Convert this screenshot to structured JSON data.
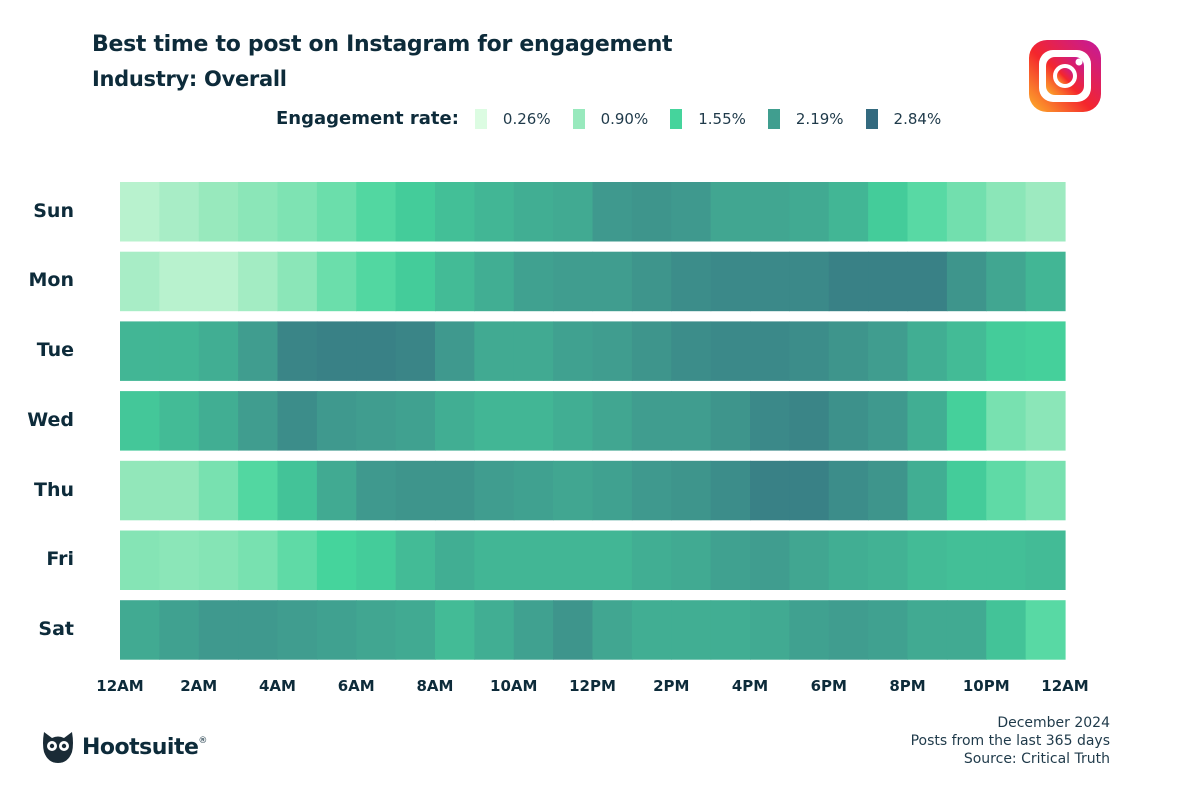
{
  "header": {
    "title": "Best time to post on Instagram for engagement",
    "subtitle": "Industry: Overall"
  },
  "legend": {
    "title": "Engagement rate:",
    "items": [
      {
        "label": "0.26%",
        "color": "#dcfce2"
      },
      {
        "label": "0.90%",
        "color": "#98e9bd"
      },
      {
        "label": "1.55%",
        "color": "#45d49c"
      },
      {
        "label": "2.19%",
        "color": "#409e8f"
      },
      {
        "label": "2.84%",
        "color": "#336a7f"
      }
    ]
  },
  "footer": {
    "date": "December 2024",
    "range": "Posts from the last 365 days",
    "source": "Source: Critical Truth"
  },
  "brand": {
    "name": "Hootsuite",
    "mark": "®",
    "icon": "owl-logo-icon"
  },
  "platform_icon": "instagram-icon",
  "chart_data": {
    "type": "heatmap",
    "title": "Best time to post on Instagram for engagement",
    "subtitle": "Industry: Overall",
    "color_scale": {
      "min": 0.26,
      "max": 2.84,
      "unit": "%",
      "stops": [
        0.26,
        0.9,
        1.55,
        2.19,
        2.84
      ]
    },
    "rows": [
      "Sun",
      "Mon",
      "Tue",
      "Wed",
      "Thu",
      "Fri",
      "Sat"
    ],
    "x_tick_labels": [
      "12AM",
      "2AM",
      "4AM",
      "6AM",
      "8AM",
      "10AM",
      "12PM",
      "2PM",
      "4PM",
      "6PM",
      "8PM",
      "10PM",
      "12AM"
    ],
    "columns": "hourly, 24 per day",
    "values": [
      [
        0.6,
        0.75,
        0.9,
        1.0,
        1.1,
        1.25,
        1.45,
        1.65,
        1.8,
        1.9,
        2.0,
        2.05,
        2.25,
        2.3,
        2.25,
        2.1,
        2.1,
        2.05,
        1.9,
        1.65,
        1.4,
        1.2,
        1.0,
        0.85
      ],
      [
        0.75,
        0.6,
        0.6,
        0.8,
        1.0,
        1.25,
        1.45,
        1.65,
        1.85,
        2.0,
        2.15,
        2.2,
        2.2,
        2.3,
        2.4,
        2.45,
        2.45,
        2.45,
        2.55,
        2.55,
        2.55,
        2.3,
        2.1,
        1.9
      ],
      [
        1.9,
        1.9,
        2.0,
        2.2,
        2.5,
        2.55,
        2.55,
        2.5,
        2.25,
        2.05,
        2.05,
        2.15,
        2.2,
        2.3,
        2.4,
        2.45,
        2.45,
        2.4,
        2.3,
        2.2,
        2.0,
        1.85,
        1.65,
        1.6
      ],
      [
        1.7,
        1.85,
        2.0,
        2.2,
        2.4,
        2.25,
        2.2,
        2.15,
        2.0,
        1.9,
        1.9,
        2.0,
        2.1,
        2.2,
        2.2,
        2.3,
        2.45,
        2.5,
        2.35,
        2.25,
        2.0,
        1.6,
        1.15,
        1.0
      ],
      [
        0.95,
        0.95,
        1.15,
        1.45,
        1.75,
        2.05,
        2.25,
        2.3,
        2.3,
        2.2,
        2.15,
        2.1,
        2.15,
        2.25,
        2.3,
        2.4,
        2.55,
        2.55,
        2.4,
        2.3,
        2.0,
        1.65,
        1.35,
        1.15
      ],
      [
        1.05,
        1.0,
        1.05,
        1.15,
        1.35,
        1.55,
        1.65,
        1.85,
        2.0,
        1.9,
        1.9,
        1.9,
        1.9,
        2.0,
        2.05,
        2.15,
        2.2,
        2.1,
        2.0,
        1.95,
        1.85,
        1.8,
        1.8,
        1.85
      ],
      [
        2.05,
        2.15,
        2.25,
        2.25,
        2.2,
        2.15,
        2.1,
        2.05,
        1.85,
        2.0,
        2.15,
        2.3,
        2.1,
        2.0,
        2.0,
        2.0,
        2.05,
        2.15,
        2.2,
        2.15,
        2.05,
        2.05,
        1.75,
        1.4
      ]
    ]
  }
}
